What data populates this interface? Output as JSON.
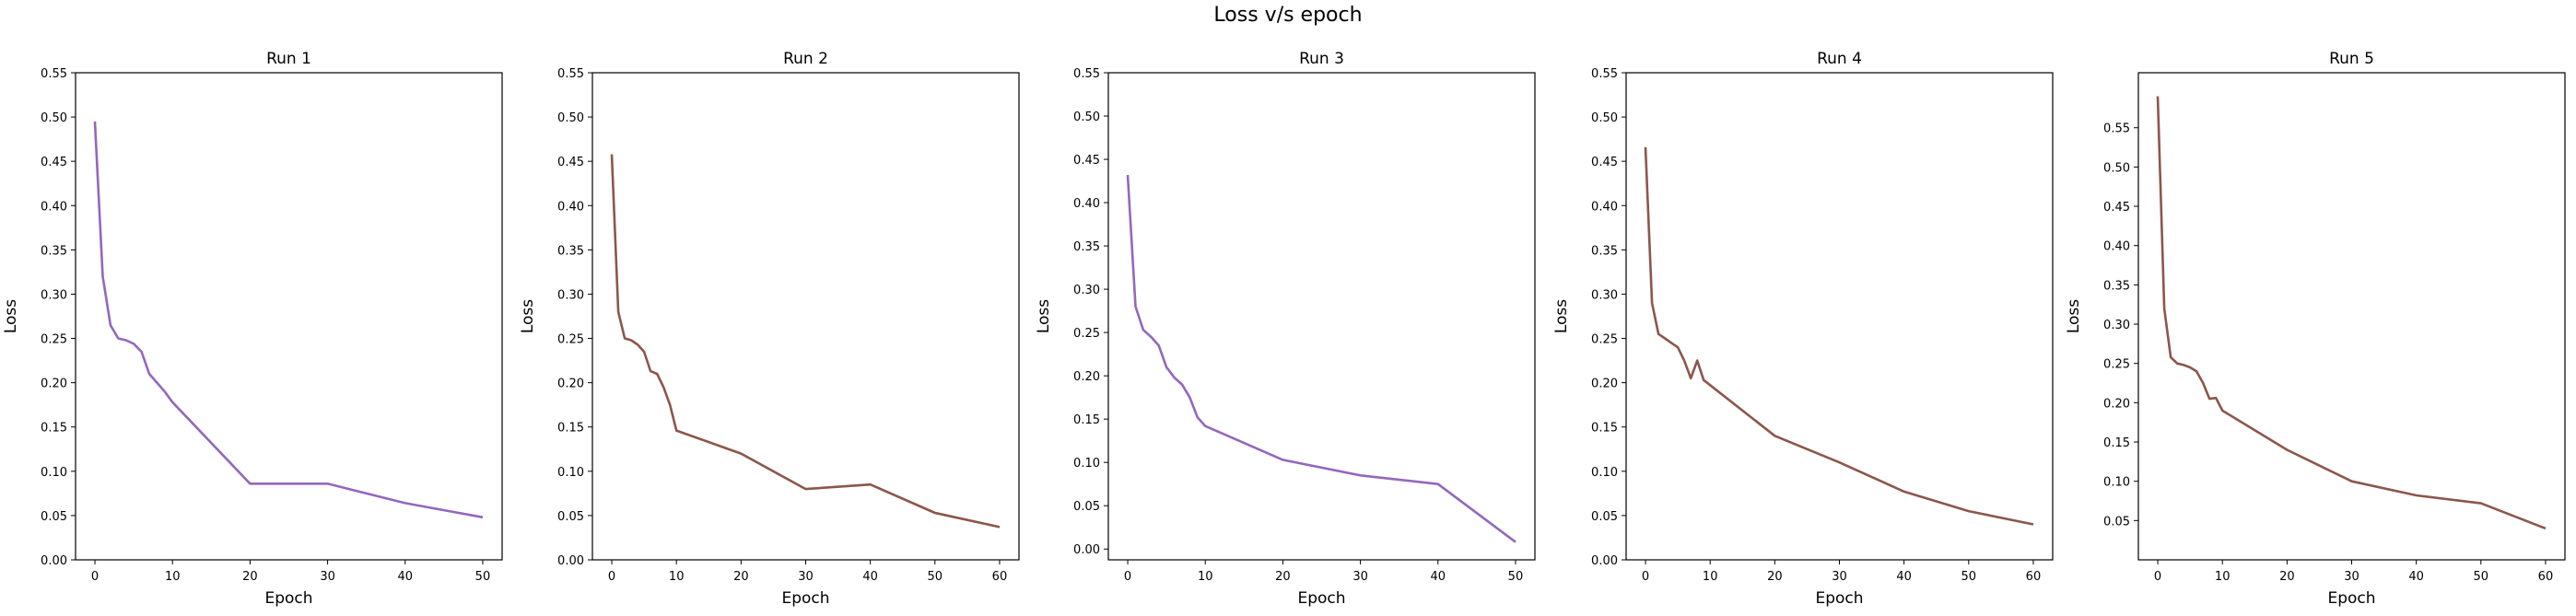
{
  "figure": {
    "title": "Loss v/s epoch"
  },
  "chart_data": [
    {
      "type": "line",
      "title": "Run 1",
      "xlabel": "Epoch",
      "ylabel": "Loss",
      "xlim": [
        -2.5,
        52.5
      ],
      "ylim": [
        0,
        0.55
      ],
      "xticks": [
        0,
        10,
        20,
        30,
        40,
        50
      ],
      "yticks": [
        "0.00",
        "0.05",
        "0.10",
        "0.15",
        "0.20",
        "0.25",
        "0.30",
        "0.35",
        "0.40",
        "0.45",
        "0.50",
        "0.55"
      ],
      "grid": false,
      "color": "#9467bd",
      "series": [
        {
          "x": [
            0,
            1,
            2,
            3,
            4,
            5,
            6,
            7,
            8,
            9,
            10,
            20,
            30,
            40,
            50
          ],
          "y": [
            0.495,
            0.32,
            0.265,
            0.25,
            0.248,
            0.244,
            0.235,
            0.21,
            0.2,
            0.19,
            0.178,
            0.086,
            0.086,
            0.064,
            0.048
          ]
        }
      ]
    },
    {
      "type": "line",
      "title": "Run 2",
      "xlabel": "Epoch",
      "ylabel": "Loss",
      "xlim": [
        -3,
        63
      ],
      "ylim": [
        0,
        0.55
      ],
      "xticks": [
        0,
        10,
        20,
        30,
        40,
        50,
        60
      ],
      "yticks": [
        "0.00",
        "0.05",
        "0.10",
        "0.15",
        "0.20",
        "0.25",
        "0.30",
        "0.35",
        "0.40",
        "0.45",
        "0.50",
        "0.55"
      ],
      "grid": false,
      "color": "#8c564b",
      "series": [
        {
          "x": [
            0,
            1,
            2,
            3,
            4,
            5,
            6,
            7,
            8,
            9,
            10,
            20,
            30,
            40,
            50,
            60
          ],
          "y": [
            0.458,
            0.28,
            0.25,
            0.248,
            0.243,
            0.235,
            0.213,
            0.21,
            0.195,
            0.175,
            0.146,
            0.12,
            0.08,
            0.085,
            0.053,
            0.037
          ]
        }
      ]
    },
    {
      "type": "line",
      "title": "Run 3",
      "xlabel": "Epoch",
      "ylabel": "Loss",
      "xlim": [
        -2.5,
        52.5
      ],
      "ylim": [
        -0.0125,
        0.55
      ],
      "xticks": [
        0,
        10,
        20,
        30,
        40,
        50
      ],
      "yticks": [
        "0.00",
        "0.05",
        "0.10",
        "0.15",
        "0.20",
        "0.25",
        "0.30",
        "0.35",
        "0.40",
        "0.45",
        "0.50",
        "0.55"
      ],
      "grid": false,
      "color": "#9467bd",
      "series": [
        {
          "x": [
            0,
            1,
            2,
            3,
            4,
            5,
            6,
            7,
            8,
            9,
            10,
            20,
            30,
            40,
            50
          ],
          "y": [
            0.432,
            0.28,
            0.253,
            0.245,
            0.235,
            0.21,
            0.198,
            0.19,
            0.175,
            0.152,
            0.142,
            0.103,
            0.085,
            0.075,
            0.008
          ]
        }
      ]
    },
    {
      "type": "line",
      "title": "Run 4",
      "xlabel": "Epoch",
      "ylabel": "Loss",
      "xlim": [
        -3,
        63
      ],
      "ylim": [
        0,
        0.55
      ],
      "xticks": [
        0,
        10,
        20,
        30,
        40,
        50,
        60
      ],
      "yticks": [
        "0.00",
        "0.05",
        "0.10",
        "0.15",
        "0.20",
        "0.25",
        "0.30",
        "0.35",
        "0.40",
        "0.45",
        "0.50",
        "0.55"
      ],
      "grid": false,
      "color": "#8c564b",
      "series": [
        {
          "x": [
            0,
            1,
            2,
            3,
            4,
            5,
            6,
            7,
            8,
            9,
            20,
            30,
            40,
            50,
            60
          ],
          "y": [
            0.466,
            0.29,
            0.255,
            0.25,
            0.245,
            0.24,
            0.225,
            0.205,
            0.225,
            0.203,
            0.14,
            0.11,
            0.077,
            0.055,
            0.04
          ]
        }
      ]
    },
    {
      "type": "line",
      "title": "Run 5",
      "xlabel": "Epoch",
      "ylabel": "Loss",
      "xlim": [
        -3,
        63
      ],
      "ylim": [
        0,
        0.62
      ],
      "xticks": [
        0,
        10,
        20,
        30,
        40,
        50,
        60
      ],
      "yticks": [
        "0.05",
        "0.10",
        "0.15",
        "0.20",
        "0.25",
        "0.30",
        "0.35",
        "0.40",
        "0.45",
        "0.50",
        "0.55"
      ],
      "grid": false,
      "color": "#8c564b",
      "series": [
        {
          "x": [
            0,
            1,
            2,
            3,
            4,
            5,
            6,
            7,
            8,
            9,
            10,
            20,
            30,
            40,
            50,
            60
          ],
          "y": [
            0.59,
            0.32,
            0.258,
            0.25,
            0.248,
            0.245,
            0.24,
            0.225,
            0.205,
            0.206,
            0.19,
            0.14,
            0.1,
            0.082,
            0.072,
            0.04
          ]
        }
      ]
    }
  ]
}
